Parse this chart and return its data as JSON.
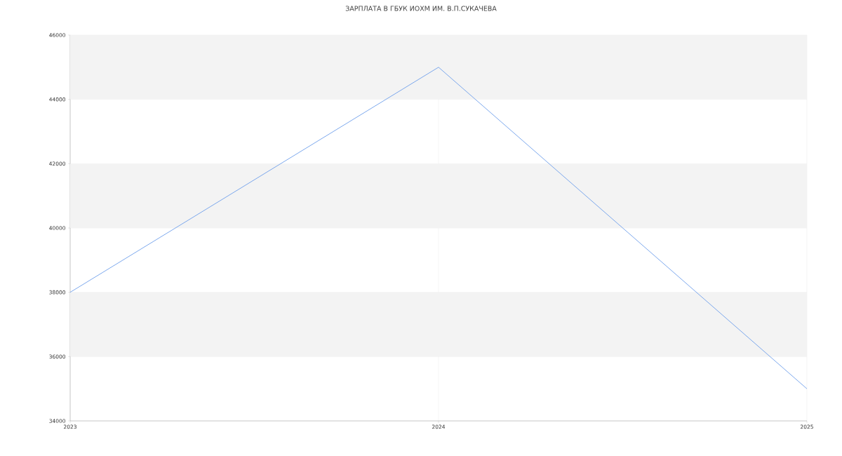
{
  "chart_data": {
    "type": "line",
    "title": "ЗАРПЛАТА В ГБУК ИОХМ ИМ. В.П.СУКАЧЕВА",
    "x": [
      2023,
      2024,
      2025
    ],
    "series": [
      {
        "color": "#6d9eeb",
        "values": [
          38000,
          45000,
          35000
        ]
      }
    ],
    "xlim": [
      2023,
      2025
    ],
    "xticks": [
      2023,
      2024,
      2025
    ],
    "ylim": [
      34000,
      46000
    ],
    "yticks": [
      34000,
      36000,
      38000,
      40000,
      42000,
      44000,
      46000
    ],
    "bands": [
      {
        "axis": "y",
        "from": 36000,
        "to": 38000,
        "color": "#f3f3f3"
      },
      {
        "axis": "y",
        "from": 40000,
        "to": 42000,
        "color": "#f3f3f3"
      },
      {
        "axis": "y",
        "from": 44000,
        "to": 46000,
        "color": "#f3f3f3"
      }
    ],
    "grid": true,
    "marker": "none",
    "line_style": "solid",
    "legend": false
  }
}
